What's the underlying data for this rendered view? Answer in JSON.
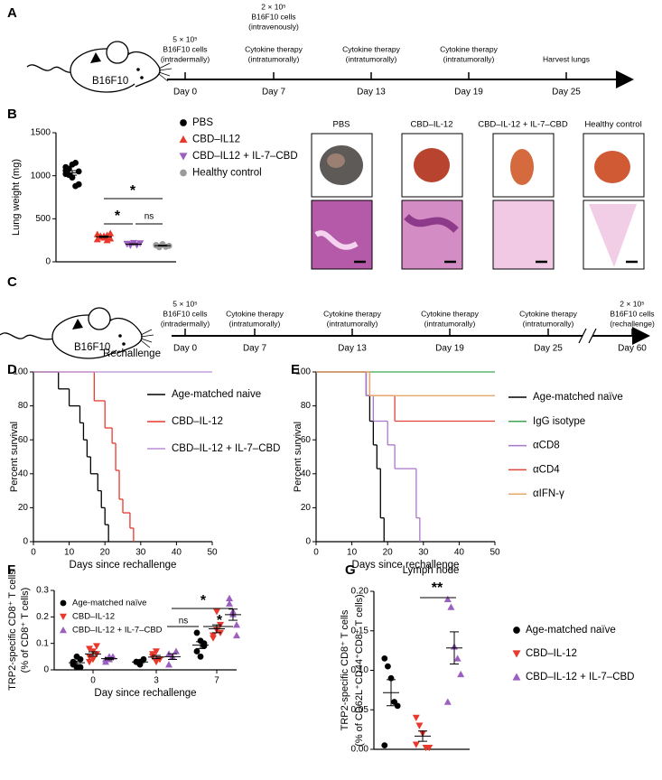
{
  "panel_labels": [
    "A",
    "B",
    "C",
    "D",
    "E",
    "F",
    "G"
  ],
  "timeline_a": {
    "mouse_label": "B16F10",
    "days": [
      "Day 0",
      "Day 7",
      "Day 13",
      "Day 19",
      "Day 25"
    ],
    "events": [
      [
        "5 × 10⁵",
        "B16F10 cells",
        "(intradermally)"
      ],
      [
        "Cytokine therapy",
        "(intratumorally)"
      ],
      [
        "Cytokine therapy",
        "(intratumorally)"
      ],
      [
        "Cytokine therapy",
        "(intratumorally)"
      ],
      [
        "Harvest lungs"
      ]
    ],
    "extra": [
      "2 × 10⁵",
      "B16F10 cells",
      "(intravenously)"
    ]
  },
  "timeline_c": {
    "mouse_label": "B16F10",
    "days": [
      "Day 0",
      "Day 7",
      "Day 13",
      "Day 19",
      "Day 25",
      "Day 60"
    ],
    "events": [
      [
        "5 × 10⁵",
        "B16F10 cells",
        "(intradermally)"
      ],
      [
        "Cytokine therapy",
        "(intratumorally)"
      ],
      [
        "Cytokine therapy",
        "(intratumorally)"
      ],
      [
        "Cytokine therapy",
        "(intratumorally)"
      ],
      [
        "Cytokine therapy",
        "(intratumorally)"
      ],
      [
        "2 × 10⁵",
        "B16F10 cells",
        "(rechallenge)"
      ]
    ]
  },
  "images": {
    "titles": [
      "PBS",
      "CBD–IL-12",
      "CBD–IL-12 + IL-7–CBD",
      "Healthy control"
    ]
  },
  "chart_data": [
    {
      "type": "scatter",
      "ylabel": [
        "Lung weight (mg)"
      ],
      "ylim": [
        0,
        1500
      ],
      "yticks": [
        0,
        500,
        1000,
        1500
      ],
      "series": [
        {
          "name": "PBS",
          "color": "#000000",
          "marker": "circle",
          "values": [
            1100,
            1080,
            1130,
            1150,
            1050,
            1020,
            1010,
            980,
            880,
            900,
            1060
          ]
        },
        {
          "name": "CBD–IL12",
          "color": "#e8392c",
          "marker": "up",
          "values": [
            320,
            300,
            280,
            310,
            270,
            260,
            290,
            300,
            250,
            330
          ]
        },
        {
          "name": "CBD–IL12 + IL-7–CBD",
          "color": "#9b5fc0",
          "marker": "down",
          "values": [
            210,
            200,
            220,
            195,
            215,
            205,
            190
          ]
        },
        {
          "name": "Healthy control",
          "color": "#9a9a9a",
          "marker": "circle",
          "values": [
            190,
            180,
            200,
            175,
            185,
            195,
            170,
            205
          ]
        }
      ],
      "annotations": [
        "*",
        "*",
        "ns"
      ]
    },
    {
      "type": "survival",
      "title": "Rechallenge",
      "xlabel": "Days since rechallenge",
      "ylabel": [
        "Percent survival"
      ],
      "xlim": [
        0,
        50
      ],
      "xticks": [
        0,
        10,
        20,
        30,
        40,
        50
      ],
      "ylim": [
        0,
        100
      ],
      "yticks": [
        0,
        20,
        40,
        60,
        80,
        100
      ],
      "series": [
        {
          "name": "Age-matched naive",
          "color": "#000000",
          "x": [
            0,
            7,
            10,
            13,
            14,
            15,
            16,
            18,
            19,
            20,
            21
          ],
          "values": [
            100,
            90,
            80,
            70,
            60,
            50,
            40,
            30,
            20,
            10,
            0
          ]
        },
        {
          "name": "CBD–IL-12",
          "color": "#e8392c",
          "x": [
            0,
            17,
            20,
            22,
            23,
            24,
            25,
            27,
            28
          ],
          "values": [
            100,
            83,
            67,
            58,
            42,
            25,
            17,
            8,
            0
          ]
        },
        {
          "name": "CBD–IL-12 + IL-7–CBD",
          "color": "#b98ed6",
          "x": [
            0
          ],
          "values": [
            100
          ]
        }
      ]
    },
    {
      "type": "survival",
      "xlabel": "Days since rechallenge",
      "ylabel": [
        "Percent survival"
      ],
      "xlim": [
        0,
        50
      ],
      "xticks": [
        0,
        10,
        20,
        30,
        40,
        50
      ],
      "ylim": [
        0,
        100
      ],
      "yticks": [
        0,
        20,
        40,
        60,
        80,
        100
      ],
      "series": [
        {
          "name": "Age-matched naïve",
          "color": "#000000",
          "x": [
            0,
            14,
            15,
            16,
            17,
            18,
            19
          ],
          "values": [
            100,
            86,
            71,
            57,
            43,
            14,
            0
          ]
        },
        {
          "name": "IgG isotype",
          "color": "#3aa655",
          "x": [
            0
          ],
          "values": [
            100
          ]
        },
        {
          "name": "αCD8",
          "color": "#a877c9",
          "x": [
            0,
            14,
            16,
            20,
            22,
            28,
            29
          ],
          "values": [
            100,
            86,
            71,
            57,
            43,
            14,
            0
          ]
        },
        {
          "name": "αCD4",
          "color": "#e0443a",
          "x": [
            0,
            15,
            22
          ],
          "values": [
            100,
            86,
            71
          ]
        },
        {
          "name": "αIFN-γ",
          "color": "#e8a868",
          "x": [
            0,
            15
          ],
          "values": [
            100,
            86
          ]
        }
      ]
    },
    {
      "type": "grouped-scatter",
      "xlabel": "Day since rechallenge",
      "ylabel": [
        "TRP2-specific CD8⁺ T cells",
        "(% of CD8⁺ T cells)"
      ],
      "categories": [
        "0",
        "3",
        "7"
      ],
      "ylim": [
        0,
        0.3
      ],
      "yticks": [
        0,
        0.1,
        0.2,
        0.3
      ],
      "series": [
        {
          "name": "Age-matched naïve",
          "color": "#000000",
          "marker": "circle",
          "values": [
            [
              0.03,
              0.01,
              0.04,
              0.02,
              0.05,
              0.01
            ],
            [
              0.03,
              0.02,
              0.04,
              0.03,
              0.03
            ],
            [
              0.07,
              0.11,
              0.09,
              0.14,
              0.05,
              0.1
            ]
          ]
        },
        {
          "name": "CBD–IL-12",
          "color": "#e8392c",
          "marker": "down",
          "values": [
            [
              0.05,
              0.07,
              0.09,
              0.08,
              0.04,
              0.06,
              0.03
            ],
            [
              0.05,
              0.07,
              0.04,
              0.06,
              0.03,
              0.04
            ],
            [
              0.12,
              0.15,
              0.17,
              0.13,
              0.22,
              0.14
            ]
          ]
        },
        {
          "name": "CBD–IL-12 + IL-7–CBD",
          "color": "#9b5fc0",
          "marker": "up",
          "values": [
            [
              0.04,
              0.05,
              0.05,
              0.03,
              0.04
            ],
            [
              0.02,
              0.05,
              0.07,
              0.06
            ],
            [
              0.27,
              0.21,
              0.17,
              0.25,
              0.22,
              0.13
            ]
          ]
        }
      ],
      "annotations": [
        "*",
        "ns",
        "*"
      ]
    },
    {
      "type": "scatter",
      "title": "Lymph node",
      "ylabel": [
        "TRP2-specific CD8⁺ T cells",
        "(% of CD62L⁺CD44⁺CD8⁺ T cells)"
      ],
      "ylim": [
        0,
        0.2
      ],
      "yticks": [
        {
          "value": 0,
          "label": "0.00"
        },
        {
          "value": 0.05,
          "label": "0.05"
        },
        {
          "value": 0.1,
          "label": "0.10"
        },
        {
          "value": 0.15,
          "label": "0.15"
        },
        {
          "value": 0.2,
          "label": "0.20"
        }
      ],
      "series": [
        {
          "name": "Age-matched naïve",
          "color": "#000000",
          "marker": "circle",
          "values": [
            0.115,
            0.105,
            0.09,
            0.06,
            0.055,
            0.005
          ]
        },
        {
          "name": "CBD–IL-12",
          "color": "#e8392c",
          "marker": "down",
          "values": [
            0.04,
            0.03,
            0.02,
            0.002,
            0.002,
            0.006
          ]
        },
        {
          "name": "CBD–IL-12 + IL-7–CBD",
          "color": "#9b5fc0",
          "marker": "up",
          "values": [
            0.19,
            0.18,
            0.13,
            0.115,
            0.095,
            0.06
          ]
        }
      ],
      "annotations": [
        "**"
      ]
    }
  ]
}
